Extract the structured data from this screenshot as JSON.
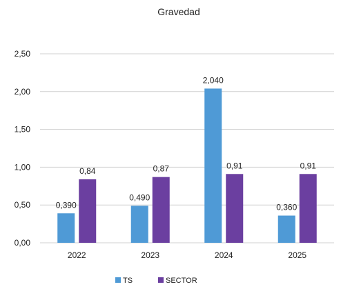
{
  "chart_data": {
    "type": "bar",
    "title": "Gravedad",
    "xlabel": "",
    "ylabel": "",
    "categories": [
      "2022",
      "2023",
      "2024",
      "2025"
    ],
    "series": [
      {
        "name": "TS",
        "values": [
          0.39,
          0.49,
          2.04,
          0.36
        ],
        "labels": [
          "0,390",
          "0,490",
          "2,040",
          "0,360"
        ],
        "color": "#4f9ad6"
      },
      {
        "name": "SECTOR",
        "values": [
          0.84,
          0.87,
          0.91,
          0.91
        ],
        "labels": [
          "0,84",
          "0,87",
          "0,91",
          "0,91"
        ],
        "color": "#6b3fa0"
      }
    ],
    "ylim": [
      0,
      2.5
    ],
    "yticks": [
      {
        "value": 0,
        "label": "0,00"
      },
      {
        "value": 0.5,
        "label": "0,50"
      },
      {
        "value": 1,
        "label": "1,00"
      },
      {
        "value": 1.5,
        "label": "1,50"
      },
      {
        "value": 2,
        "label": "2,00"
      },
      {
        "value": 2.5,
        "label": "2,50"
      }
    ],
    "grid": true,
    "gridColor": "#d0d0d0",
    "legendPosition": "bottom"
  }
}
